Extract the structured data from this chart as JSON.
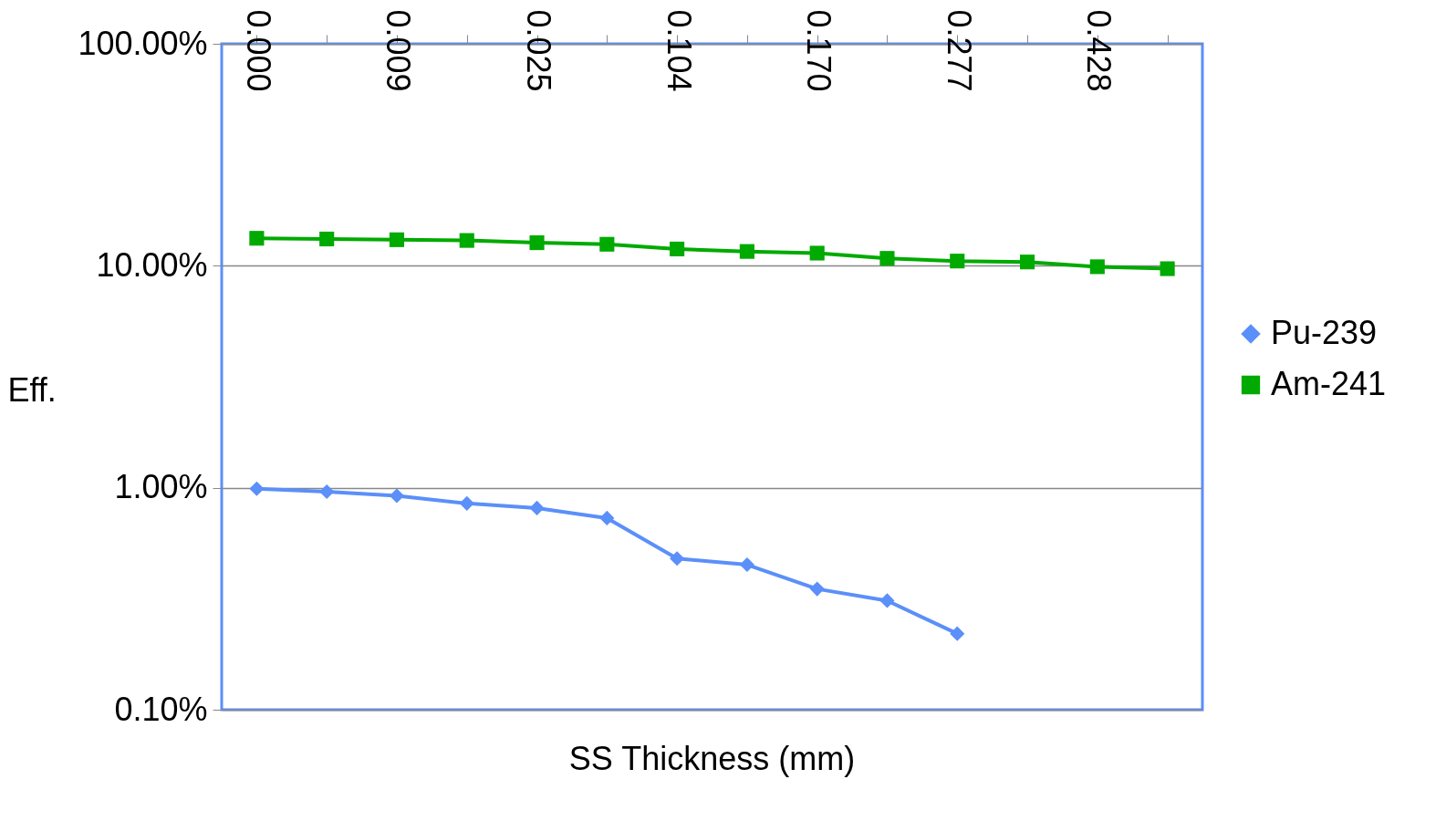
{
  "chart_data": {
    "type": "line",
    "xlabel": "SS Thickness (mm)",
    "ylabel": "Eff.",
    "categories": [
      "0.000",
      null,
      "0.009",
      null,
      "0.025",
      null,
      "0.104",
      null,
      "0.170",
      null,
      "0.277",
      null,
      "0.428",
      null
    ],
    "series": [
      {
        "name": "Pu-239",
        "color": "#5b8ff9",
        "marker": "diamond",
        "values": [
          0.99,
          0.96,
          0.92,
          0.85,
          0.81,
          0.73,
          0.48,
          0.45,
          0.35,
          0.31,
          0.22,
          null,
          null,
          null
        ]
      },
      {
        "name": "Am-241",
        "color": "#00aa00",
        "marker": "square",
        "values": [
          13.3,
          13.2,
          13.1,
          13.0,
          12.7,
          12.5,
          11.9,
          11.6,
          11.4,
          10.8,
          10.5,
          10.4,
          9.9,
          9.7
        ]
      }
    ],
    "log": true,
    "ylim": [
      0.1,
      100
    ],
    "yticks": [
      {
        "value": 0.1,
        "label": "0.10%"
      },
      {
        "value": 1,
        "label": "1.00%"
      },
      {
        "value": 10,
        "label": "10.00%"
      },
      {
        "value": 100,
        "label": "100.00%"
      }
    ],
    "grid": "y",
    "legend": "right",
    "line_style": "solid"
  }
}
